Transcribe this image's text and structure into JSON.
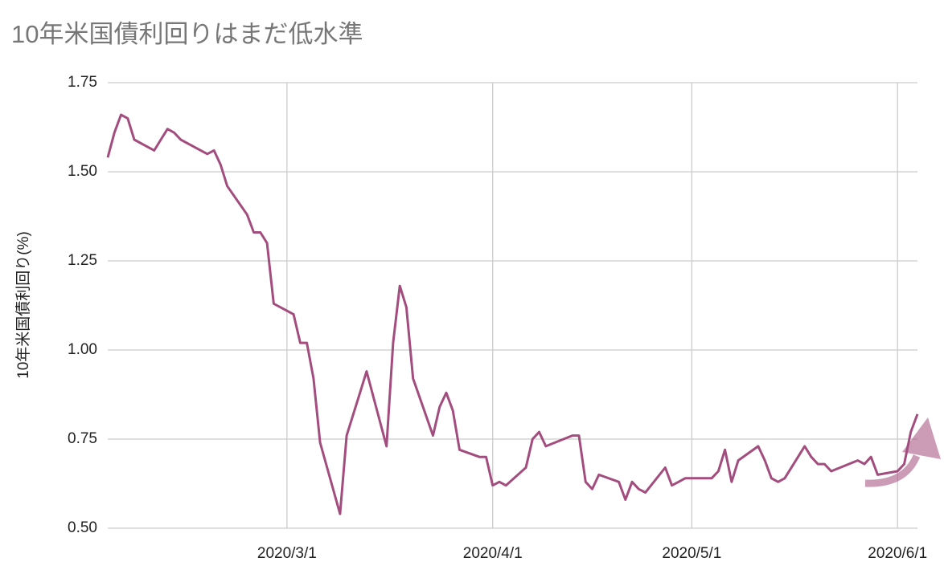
{
  "chart_data": {
    "type": "line",
    "title": "10年米国債利回りはまだ低水準",
    "y_label": "10年米国債利回り(%)",
    "x": [
      "2020/2/3",
      "2020/2/4",
      "2020/2/5",
      "2020/2/6",
      "2020/2/7",
      "2020/2/10",
      "2020/2/11",
      "2020/2/12",
      "2020/2/13",
      "2020/2/14",
      "2020/2/18",
      "2020/2/19",
      "2020/2/20",
      "2020/2/21",
      "2020/2/24",
      "2020/2/25",
      "2020/2/26",
      "2020/2/27",
      "2020/2/28",
      "2020/3/2",
      "2020/3/3",
      "2020/3/4",
      "2020/3/5",
      "2020/3/6",
      "2020/3/9",
      "2020/3/10",
      "2020/3/11",
      "2020/3/12",
      "2020/3/13",
      "2020/3/16",
      "2020/3/17",
      "2020/3/18",
      "2020/3/19",
      "2020/3/20",
      "2020/3/23",
      "2020/3/24",
      "2020/3/25",
      "2020/3/26",
      "2020/3/27",
      "2020/3/30",
      "2020/3/31",
      "2020/4/1",
      "2020/4/2",
      "2020/4/3",
      "2020/4/6",
      "2020/4/7",
      "2020/4/8",
      "2020/4/9",
      "2020/4/13",
      "2020/4/14",
      "2020/4/15",
      "2020/4/16",
      "2020/4/17",
      "2020/4/20",
      "2020/4/21",
      "2020/4/22",
      "2020/4/23",
      "2020/4/24",
      "2020/4/27",
      "2020/4/28",
      "2020/4/29",
      "2020/4/30",
      "2020/5/1",
      "2020/5/4",
      "2020/5/5",
      "2020/5/6",
      "2020/5/7",
      "2020/5/8",
      "2020/5/11",
      "2020/5/12",
      "2020/5/13",
      "2020/5/14",
      "2020/5/15",
      "2020/5/18",
      "2020/5/19",
      "2020/5/20",
      "2020/5/21",
      "2020/5/22",
      "2020/5/26",
      "2020/5/27",
      "2020/5/28",
      "2020/5/29",
      "2020/6/1",
      "2020/6/2",
      "2020/6/3",
      "2020/6/4"
    ],
    "series": [
      {
        "name": "10年米国債利回り",
        "color": "#a34d7e",
        "values": [
          1.54,
          1.61,
          1.66,
          1.65,
          1.59,
          1.56,
          1.59,
          1.62,
          1.61,
          1.59,
          1.55,
          1.56,
          1.52,
          1.46,
          1.38,
          1.33,
          1.33,
          1.3,
          1.13,
          1.1,
          1.02,
          1.02,
          0.92,
          0.74,
          0.54,
          0.76,
          0.82,
          0.88,
          0.94,
          0.73,
          1.02,
          1.18,
          1.12,
          0.92,
          0.76,
          0.84,
          0.88,
          0.83,
          0.72,
          0.7,
          0.7,
          0.62,
          0.63,
          0.62,
          0.67,
          0.75,
          0.77,
          0.73,
          0.76,
          0.76,
          0.63,
          0.61,
          0.65,
          0.63,
          0.58,
          0.63,
          0.61,
          0.6,
          0.67,
          0.62,
          0.63,
          0.64,
          0.64,
          0.64,
          0.66,
          0.72,
          0.63,
          0.69,
          0.73,
          0.69,
          0.64,
          0.63,
          0.64,
          0.73,
          0.7,
          0.68,
          0.68,
          0.66,
          0.69,
          0.68,
          0.7,
          0.65,
          0.66,
          0.68,
          0.77,
          0.82
        ]
      }
    ],
    "xlim": [
      "2020/2/3",
      "2020/6/4"
    ],
    "xticks": [
      "2020/3/1",
      "2020/4/1",
      "2020/5/1",
      "2020/6/1"
    ],
    "ylim": [
      0.5,
      1.75
    ],
    "yticks": [
      {
        "value": 0.5,
        "label": "0.50"
      },
      {
        "value": 0.75,
        "label": "0.75"
      },
      {
        "value": 1,
        "label": "1.00"
      },
      {
        "value": 1.25,
        "label": "1.25"
      },
      {
        "value": 1.5,
        "label": "1.50"
      },
      {
        "value": 1.75,
        "label": "1.75"
      }
    ],
    "grid": true
  }
}
